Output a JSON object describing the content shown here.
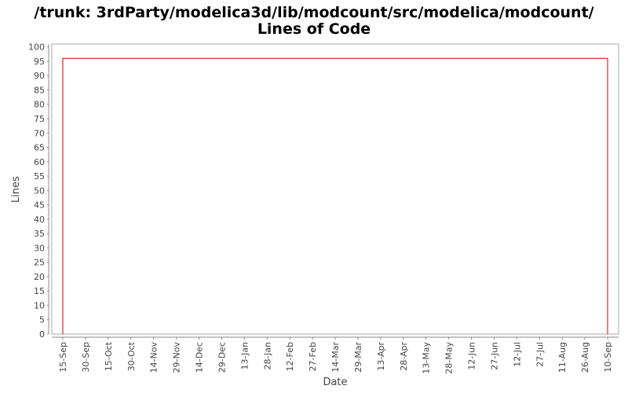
{
  "chart_data": {
    "type": "area",
    "title_lines": [
      "/trunk: 3rdParty/modelica3d/lib/modcount/src/modelica/modcount/",
      "Lines of Code"
    ],
    "xlabel": "Date",
    "ylabel": "Lines",
    "x_tick_labels": [
      "15-Sep",
      "30-Sep",
      "15-Oct",
      "30-Oct",
      "14-Nov",
      "29-Nov",
      "14-Dec",
      "29-Dec",
      "13-Jan",
      "28-Jan",
      "12-Feb",
      "27-Feb",
      "14-Mar",
      "29-Mar",
      "13-Apr",
      "28-Apr",
      "13-May",
      "28-May",
      "12-Jun",
      "27-Jun",
      "12-Jul",
      "27-Jul",
      "11-Aug",
      "26-Aug",
      "10-Sep"
    ],
    "y_ticks": [
      0,
      5,
      10,
      15,
      20,
      25,
      30,
      35,
      40,
      45,
      50,
      55,
      60,
      65,
      70,
      75,
      80,
      85,
      90,
      95,
      100
    ],
    "ylim": [
      0,
      101
    ],
    "series": [
      {
        "values": [
          0,
          96,
          96,
          0
        ],
        "x": [
          "15-Sep",
          "15-Sep",
          "10-Sep",
          "10-Sep"
        ]
      }
    ],
    "grid": false,
    "colors": {
      "line": "#cc0000",
      "axis": "#888888",
      "frame": "#aaaaaa"
    }
  }
}
